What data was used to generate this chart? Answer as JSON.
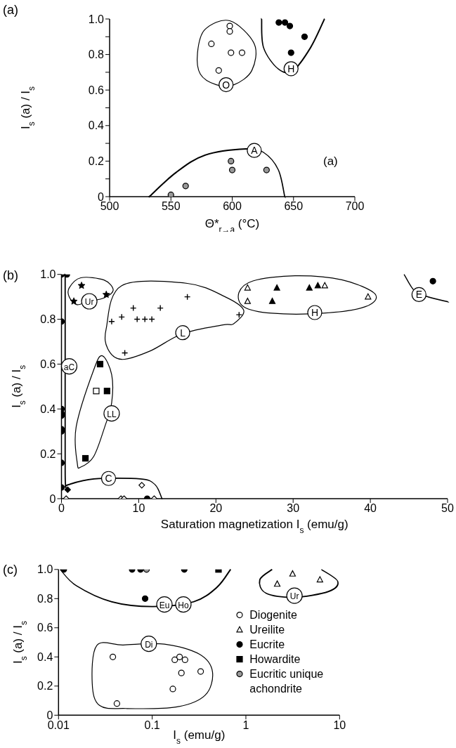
{
  "chart_data": [
    {
      "type": "scatter",
      "title": "(a)",
      "xlabel": "Θ*$_{r→a}$ (°C)",
      "ylabel": "I$_{s}$ (a) / I$_{s}$",
      "xlim": [
        500,
        700
      ],
      "ylim": [
        0,
        1
      ],
      "xticks": [
        500,
        550,
        600,
        650,
        700
      ],
      "yticks": [
        0,
        {
          "value": 0.1,
          "label": null
        },
        0.2,
        {
          "value": 0.3,
          "label": null
        },
        0.4,
        {
          "value": 0.5,
          "label": null
        },
        0.6,
        {
          "value": 0.7,
          "label": null
        },
        0.8,
        {
          "value": 0.9,
          "label": null
        },
        {
          "value": 1,
          "label": "1.0"
        }
      ],
      "series": [
        {
          "marker": "circle",
          "color": "#ffffff",
          "x": [
            598,
            598,
            583,
            599,
            608,
            589
          ],
          "values": [
            0.96,
            0.93,
            0.86,
            0.81,
            0.81,
            0.71
          ]
        },
        {
          "marker": "circle",
          "color": "#000000",
          "x": [
            638,
            643,
            647,
            659,
            648
          ],
          "values": [
            0.98,
            0.98,
            0.96,
            0.9,
            0.81
          ]
        },
        {
          "marker": "circle",
          "color": "#999999",
          "x": [
            550,
            562,
            599,
            600,
            628
          ],
          "values": [
            0.01,
            0.06,
            0.2,
            0.15,
            0.15
          ]
        }
      ],
      "annotations": [
        {
          "text": "O",
          "x": 595,
          "y": 0.63
        },
        {
          "text": "H",
          "x": 648,
          "y": 0.72
        },
        {
          "text": "A",
          "x": 618,
          "y": 0.26
        },
        "(a)"
      ]
    },
    {
      "type": "scatter",
      "title": "(b)",
      "xlabel": "Saturation magnetization I$_{s}$ (emu/g)",
      "ylabel": "I$_{s}$ (a) / I$_{s}$",
      "xlim": [
        0,
        50
      ],
      "ylim": [
        0,
        1
      ],
      "xticks": [
        0,
        10,
        20,
        30,
        40,
        50
      ],
      "yticks": [
        0,
        0.2,
        0.4,
        0.6,
        0.8,
        {
          "value": 1,
          "label": "1.0"
        }
      ],
      "series": [
        {
          "marker": "circle",
          "color": "#000000",
          "x": [
            0,
            0.7,
            0,
            0,
            0,
            0,
            0,
            0,
            0,
            0,
            11.1,
            48.1
          ],
          "values": [
            1,
            1,
            0.79,
            0.4,
            0.38,
            0.37,
            0.31,
            0.3,
            0.16,
            0.05,
            0,
            0.97
          ]
        },
        {
          "marker": "diamond",
          "color": "#000000",
          "x": [
            0.8
          ],
          "values": [
            0.04
          ]
        },
        {
          "marker": "diamond",
          "color": "#ffffff",
          "x": [
            0.6,
            7.7,
            8.1,
            10.4,
            12.0
          ],
          "values": [
            0,
            0,
            0,
            0.06,
            0
          ]
        },
        {
          "marker": "star",
          "color": "#000000",
          "x": [
            2.6,
            5.8,
            1.6
          ],
          "values": [
            0.95,
            0.91,
            0.88
          ]
        },
        {
          "marker": "cross",
          "color": "#000000",
          "x": [
            6.5,
            7.8,
            9.3,
            9.8,
            10.8,
            11.7,
            12.8,
            16.3,
            8.2,
            23.0
          ],
          "values": [
            0.79,
            0.81,
            0.85,
            0.8,
            0.8,
            0.8,
            0.85,
            0.9,
            0.65,
            0.82
          ]
        },
        {
          "marker": "square",
          "color": "#000000",
          "x": [
            5.0,
            5.9,
            3.1
          ],
          "values": [
            0.6,
            0.48,
            0.18
          ]
        },
        {
          "marker": "square",
          "color": "#ffffff",
          "x": [
            4.5
          ],
          "values": [
            0.48
          ]
        },
        {
          "marker": "triangle",
          "color": "#ffffff",
          "x": [
            24.1,
            24.1,
            34.1,
            39.7
          ],
          "values": [
            0.94,
            0.88,
            0.95,
            0.9
          ]
        },
        {
          "marker": "triangle",
          "color": "#000000",
          "x": [
            27.9,
            32.1,
            33.2,
            27.3
          ],
          "values": [
            0.94,
            0.94,
            0.95,
            0.88
          ]
        }
      ],
      "annotations": [
        {
          "text": "Ur",
          "x": 3.6,
          "y": 0.88
        },
        {
          "text": "aC",
          "x": 1.0,
          "y": 0.59
        },
        {
          "text": "L",
          "x": 15.7,
          "y": 0.74
        },
        {
          "text": "LL",
          "x": 6.5,
          "y": 0.38
        },
        {
          "text": "C",
          "x": 6.1,
          "y": 0.09
        },
        {
          "text": "H",
          "x": 32.8,
          "y": 0.83
        },
        {
          "text": "E",
          "x": 46.3,
          "y": 0.91
        }
      ]
    },
    {
      "type": "scatter",
      "title": "(c)",
      "xlabel": "I$_{s}$ (emu/g)",
      "ylabel": "I$_{s}$ (a) / I$_{s}$",
      "log": "x",
      "xlim": [
        0.01,
        10
      ],
      "ylim": [
        0,
        1
      ],
      "xticks": [
        0.01,
        0.1,
        1,
        10
      ],
      "yticks": [
        0,
        0.2,
        0.4,
        0.6,
        0.8,
        {
          "value": 1,
          "label": "1.0"
        }
      ],
      "legend": "right",
      "series": [
        {
          "name": "Diogenite",
          "marker": "circle",
          "color": "#ffffff",
          "x": [
            0.038,
            0.042,
            0.174,
            0.196,
            0.224,
            0.205,
            0.329,
            0.166
          ],
          "values": [
            0.4,
            0.08,
            0.38,
            0.4,
            0.38,
            0.29,
            0.3,
            0.18
          ]
        },
        {
          "name": "Ureilite",
          "marker": "triangle",
          "color": "#ffffff",
          "x": [
            2.16,
            3.15,
            6.17
          ],
          "values": [
            0.9,
            0.97,
            0.93
          ]
        },
        {
          "name": "Eucrite",
          "marker": "circle",
          "color": "#000000",
          "x": [
            0.0114,
            0.061,
            0.075,
            0.22,
            0.084
          ],
          "values": [
            1,
            1,
            1,
            1,
            0.8
          ]
        },
        {
          "name": "Howardite",
          "marker": "square",
          "color": "#000000",
          "x": [
            0.51
          ],
          "values": [
            1
          ]
        },
        {
          "name": "Eucritic unique achondrite",
          "marker": "circle",
          "color": "#999999",
          "x": [
            0.087
          ],
          "values": [
            1
          ]
        }
      ],
      "annotations": [
        {
          "text": "Eu",
          "x": 0.135,
          "y": 0.76
        },
        {
          "text": "Ho",
          "x": 0.215,
          "y": 0.76
        },
        {
          "text": "Ur",
          "x": 3.3,
          "y": 0.82
        },
        {
          "text": "Di",
          "x": 0.092,
          "y": 0.49
        }
      ]
    }
  ]
}
